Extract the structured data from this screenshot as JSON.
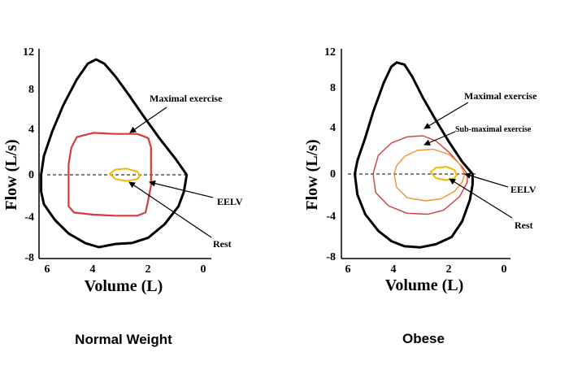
{
  "colors": {
    "maximal": "#000000",
    "exercise": "#d73a3a",
    "sub_maximal": "#f0922e",
    "rest": "#f2b800",
    "zero_line": "#000000"
  },
  "chart_data": [
    {
      "type": "line",
      "panel": "normal",
      "caption": "Normal Weight",
      "xlabel": "Volume (L)",
      "ylabel": "Flow (L/s)",
      "xlim": [
        6,
        0
      ],
      "ylim": [
        -8,
        12
      ],
      "x_ticks": [
        "6",
        "4",
        "2",
        "0"
      ],
      "y_ticks": [
        "12",
        "8",
        "4",
        "0",
        "-4",
        "-8"
      ],
      "zero_line": "dashed",
      "series": [
        {
          "key": "maximal",
          "points": [
            [
              0.6,
              0
            ],
            [
              1.0,
              1.5
            ],
            [
              1.6,
              3.5
            ],
            [
              2.2,
              5.7
            ],
            [
              2.7,
              7.6
            ],
            [
              3.2,
              9.4
            ],
            [
              3.6,
              10.6
            ],
            [
              3.9,
              11.0
            ],
            [
              4.2,
              10.6
            ],
            [
              4.6,
              9.1
            ],
            [
              5.1,
              6.6
            ],
            [
              5.5,
              4.1
            ],
            [
              5.8,
              1.8
            ],
            [
              5.9,
              0
            ],
            [
              5.9,
              -1.6
            ],
            [
              5.8,
              -2.8
            ],
            [
              5.4,
              -4.3
            ],
            [
              4.9,
              -5.6
            ],
            [
              4.3,
              -6.5
            ],
            [
              3.8,
              -6.9
            ],
            [
              3.2,
              -6.6
            ],
            [
              2.6,
              -6.5
            ],
            [
              2.0,
              -6.0
            ],
            [
              1.4,
              -4.7
            ],
            [
              0.9,
              -3.0
            ],
            [
              0.7,
              -1.6
            ],
            [
              0.6,
              0
            ]
          ]
        },
        {
          "key": "exercise",
          "points": [
            [
              1.9,
              0
            ],
            [
              1.9,
              2.6
            ],
            [
              2.0,
              3.5
            ],
            [
              2.4,
              3.9
            ],
            [
              3.2,
              3.9
            ],
            [
              4.0,
              4.0
            ],
            [
              4.6,
              3.6
            ],
            [
              4.8,
              2.6
            ],
            [
              4.9,
              1.0
            ],
            [
              4.9,
              -1.0
            ],
            [
              4.9,
              -3.0
            ],
            [
              4.7,
              -3.6
            ],
            [
              4.0,
              -3.8
            ],
            [
              3.2,
              -3.9
            ],
            [
              2.4,
              -3.9
            ],
            [
              2.1,
              -3.6
            ],
            [
              2.0,
              -2.4
            ],
            [
              1.9,
              -1.0
            ],
            [
              1.9,
              0
            ]
          ]
        },
        {
          "key": "rest",
          "points": [
            [
              2.3,
              -0.1
            ],
            [
              2.4,
              0.3
            ],
            [
              2.8,
              0.6
            ],
            [
              3.2,
              0.5
            ],
            [
              3.4,
              0.1
            ],
            [
              3.2,
              -0.4
            ],
            [
              2.8,
              -0.6
            ],
            [
              2.4,
              -0.4
            ],
            [
              2.3,
              -0.1
            ]
          ]
        }
      ],
      "annotations": [
        {
          "label": "Maximal exercise",
          "pointer": [
            3.0,
            3.8
          ]
        },
        {
          "label": "EELV",
          "pointer": [
            2.0,
            -0.9
          ]
        },
        {
          "label": "Rest",
          "pointer": [
            2.8,
            -0.6
          ]
        }
      ]
    },
    {
      "type": "line",
      "panel": "obese",
      "caption": "Obese",
      "xlabel": "Volume (L)",
      "ylabel": "Flow (L/s)",
      "xlim": [
        6,
        0
      ],
      "ylim": [
        -8,
        12
      ],
      "x_ticks": [
        "6",
        "4",
        "2",
        "0"
      ],
      "y_ticks": [
        "12",
        "8",
        "4",
        "0",
        "-4",
        "-8"
      ],
      "zero_line": "dashed",
      "series": [
        {
          "key": "maximal",
          "points": [
            [
              1.2,
              0
            ],
            [
              1.6,
              1.2
            ],
            [
              2.1,
              3.1
            ],
            [
              2.6,
              5.2
            ],
            [
              3.1,
              7.4
            ],
            [
              3.5,
              9.4
            ],
            [
              3.8,
              10.6
            ],
            [
              4.1,
              10.8
            ],
            [
              4.3,
              10.4
            ],
            [
              4.6,
              8.8
            ],
            [
              5.0,
              6.0
            ],
            [
              5.3,
              3.5
            ],
            [
              5.6,
              1.3
            ],
            [
              5.7,
              0
            ],
            [
              5.6,
              -2.0
            ],
            [
              5.3,
              -3.9
            ],
            [
              4.8,
              -5.5
            ],
            [
              4.3,
              -6.5
            ],
            [
              3.8,
              -7.0
            ],
            [
              3.2,
              -7.1
            ],
            [
              2.6,
              -6.8
            ],
            [
              2.0,
              -6.1
            ],
            [
              1.6,
              -4.6
            ],
            [
              1.3,
              -2.5
            ],
            [
              1.2,
              -1.0
            ],
            [
              1.2,
              0
            ]
          ]
        },
        {
          "key": "exercise",
          "points": [
            [
              1.4,
              0
            ],
            [
              1.6,
              0.7
            ],
            [
              2.1,
              2.1
            ],
            [
              2.6,
              3.2
            ],
            [
              3.1,
              3.7
            ],
            [
              3.7,
              3.6
            ],
            [
              4.3,
              3.0
            ],
            [
              4.8,
              1.8
            ],
            [
              5.0,
              0
            ],
            [
              4.9,
              -1.8
            ],
            [
              4.4,
              -3.1
            ],
            [
              3.7,
              -3.8
            ],
            [
              2.9,
              -3.9
            ],
            [
              2.3,
              -3.5
            ],
            [
              1.7,
              -2.2
            ],
            [
              1.4,
              -0.8
            ],
            [
              1.4,
              0
            ]
          ]
        },
        {
          "key": "sub_maximal",
          "points": [
            [
              1.5,
              0
            ],
            [
              1.7,
              1.0
            ],
            [
              2.1,
              1.9
            ],
            [
              2.7,
              2.4
            ],
            [
              3.3,
              2.3
            ],
            [
              3.8,
              1.7
            ],
            [
              4.1,
              0.8
            ],
            [
              4.2,
              0
            ],
            [
              4.1,
              -1.3
            ],
            [
              3.7,
              -2.3
            ],
            [
              3.0,
              -2.6
            ],
            [
              2.4,
              -2.4
            ],
            [
              1.9,
              -1.7
            ],
            [
              1.6,
              -0.8
            ],
            [
              1.5,
              0
            ]
          ]
        },
        {
          "key": "rest",
          "points": [
            [
              1.8,
              -0.1
            ],
            [
              1.9,
              0.4
            ],
            [
              2.2,
              0.7
            ],
            [
              2.6,
              0.6
            ],
            [
              2.8,
              0.2
            ],
            [
              2.6,
              -0.4
            ],
            [
              2.2,
              -0.6
            ],
            [
              1.9,
              -0.4
            ],
            [
              1.8,
              -0.1
            ]
          ]
        }
      ],
      "annotations": [
        {
          "label": "Maximal exercise",
          "pointer": [
            3.0,
            3.6
          ]
        },
        {
          "label": "Sub-maximal exercise",
          "pointer": [
            3.2,
            2.4
          ]
        },
        {
          "label": "EELV",
          "pointer": [
            1.5,
            0
          ]
        },
        {
          "label": "Rest",
          "pointer": [
            2.3,
            -0.6
          ]
        }
      ]
    }
  ]
}
